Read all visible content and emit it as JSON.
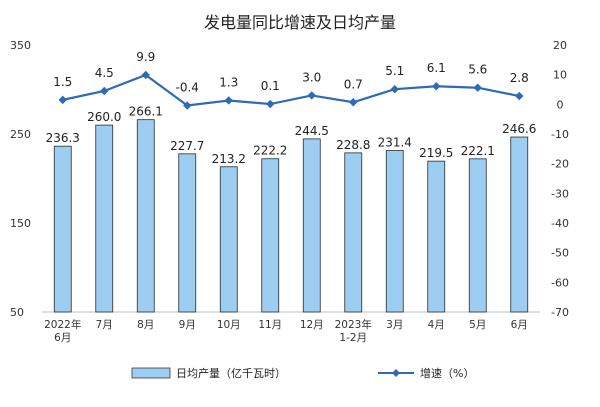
{
  "chart_data": {
    "type": "bar",
    "title": "发电量同比增速及日均产量",
    "categories": [
      [
        "2022年",
        "6月"
      ],
      [
        "7月"
      ],
      [
        "8月"
      ],
      [
        "9月"
      ],
      [
        "10月"
      ],
      [
        "11月"
      ],
      [
        "12月"
      ],
      [
        "2023年",
        "1-2月"
      ],
      [
        "3月"
      ],
      [
        "4月"
      ],
      [
        "5月"
      ],
      [
        "6月"
      ]
    ],
    "left_axis": {
      "min": 50,
      "max": 350,
      "ticks": [
        50,
        150,
        250,
        350
      ]
    },
    "right_axis": {
      "min": -70,
      "max": 20,
      "ticks": [
        20,
        10,
        0,
        -10,
        -20,
        -30,
        -40,
        -50,
        -60,
        -70
      ]
    },
    "series": [
      {
        "name": "日均产量（亿千瓦时）",
        "type": "bar",
        "axis": "left",
        "color": "#9dcdf0",
        "values": [
          236.3,
          260.0,
          266.1,
          227.7,
          213.2,
          222.2,
          244.5,
          228.8,
          231.4,
          219.5,
          222.1,
          246.6
        ],
        "labels": [
          "236.3",
          "260.0",
          "266.1",
          "227.7",
          "213.2",
          "222.2",
          "244.5",
          "228.8",
          "231.4",
          "219.5",
          "222.1",
          "246.6"
        ]
      },
      {
        "name": "增速（%）",
        "type": "line",
        "axis": "right",
        "color": "#2e6ab5",
        "values": [
          1.5,
          4.5,
          9.9,
          -0.4,
          1.3,
          0.1,
          3.0,
          0.7,
          5.1,
          6.1,
          5.6,
          2.8
        ],
        "labels": [
          "1.5",
          "4.5",
          "9.9",
          "-0.4",
          "1.3",
          "0.1",
          "3.0",
          "0.7",
          "5.1",
          "6.1",
          "5.6",
          "2.8"
        ]
      }
    ],
    "legend_position": "bottom"
  }
}
